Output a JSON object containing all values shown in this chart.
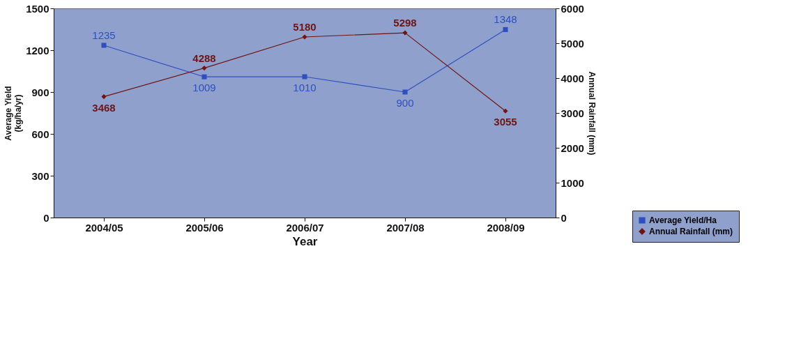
{
  "chart_data": {
    "type": "line",
    "xlabel": "Year",
    "ylabel": "Average Yield (kg/ha/yr)",
    "y2label": "Annual Rainfall (mm)",
    "categories": [
      "2004/05",
      "2005/06",
      "2006/07",
      "2007/08",
      "2008/09"
    ],
    "series": [
      {
        "name": "Average Yield/Ha",
        "color": "#2f4fc0",
        "marker": "square",
        "values": [
          1235,
          1009,
          1010,
          900,
          1348
        ]
      },
      {
        "name": "Annual Rainfall (mm)",
        "color": "#6e1414",
        "marker": "diamond",
        "axis": "y2",
        "values": [
          3468,
          4288,
          5180,
          5298,
          3055
        ]
      }
    ],
    "ylim": [
      0,
      1500
    ],
    "yticks": [
      0,
      300,
      600,
      900,
      1200,
      1500
    ],
    "y2lim": [
      0,
      6000
    ],
    "y2ticks": [
      0,
      1000,
      2000,
      3000,
      4000,
      5000,
      6000
    ],
    "data_labels": true,
    "grid": false,
    "legend": "bottom right"
  }
}
